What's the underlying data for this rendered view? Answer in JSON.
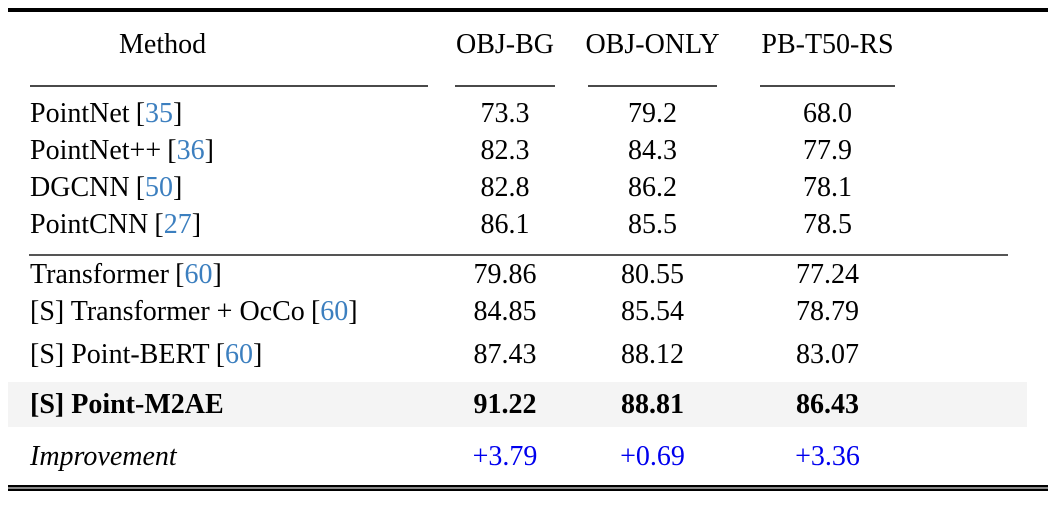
{
  "colors": {
    "cite": "#3c7fbf",
    "improve": "#0000ee",
    "hlbg": "#f4f4f4"
  },
  "table": {
    "citation": {
      "open": "[",
      "close": "]"
    },
    "headers": {
      "method": "Method",
      "col1": "OBJ-BG",
      "col2": "OBJ-ONLY",
      "col3": "PB-T50-RS"
    },
    "sections": [
      {
        "rows": [
          {
            "name": "PointNet",
            "cite": "35",
            "values": [
              "73.3",
              "79.2",
              "68.0"
            ]
          },
          {
            "name": "PointNet++",
            "cite": "36",
            "values": [
              "82.3",
              "84.3",
              "77.9"
            ]
          },
          {
            "name": "DGCNN",
            "cite": "50",
            "values": [
              "82.8",
              "86.2",
              "78.1"
            ]
          },
          {
            "name": "PointCNN",
            "cite": "27",
            "values": [
              "86.1",
              "85.5",
              "78.5"
            ]
          }
        ]
      },
      {
        "rows": [
          {
            "name": "Transformer",
            "cite": "60",
            "values": [
              "79.86",
              "80.55",
              "77.24"
            ]
          },
          {
            "name": "[S] Transformer + OcCo",
            "cite": "60",
            "values": [
              "84.85",
              "85.54",
              "78.79"
            ]
          },
          {
            "name": "[S] Point-BERT",
            "cite": "60",
            "values": [
              "87.43",
              "88.12",
              "83.07"
            ]
          }
        ]
      }
    ],
    "highlight": {
      "name": "[S] Point-M2AE",
      "values": [
        "91.22",
        "88.81",
        "86.43"
      ]
    },
    "improvement": {
      "label": "Improvement",
      "values": [
        "+3.79",
        "+0.69",
        "+3.36"
      ]
    }
  }
}
